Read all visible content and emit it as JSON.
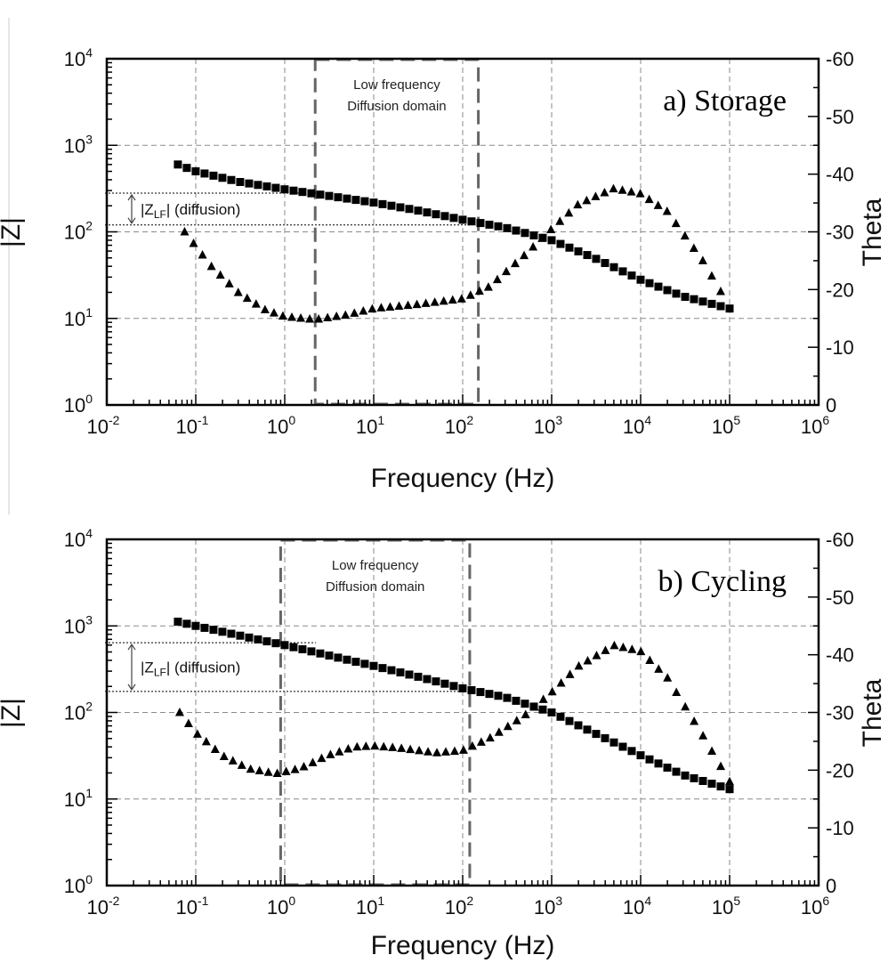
{
  "chart_data": [
    {
      "type": "scatter",
      "title": "a) Storage",
      "xlabel": "Frequency (Hz)",
      "ylabel": "|Z|",
      "y2label": "Theta",
      "xscale": "log",
      "yscale": "log",
      "xlim": [
        0.01,
        1000000
      ],
      "ylim": [
        1,
        10000
      ],
      "y2lim": [
        0,
        -60
      ],
      "x_tick_labels": [
        {
          "base": "10",
          "exp": "-2"
        },
        {
          "base": "10",
          "exp": "-1"
        },
        {
          "base": "10",
          "exp": "0"
        },
        {
          "base": "10",
          "exp": "1"
        },
        {
          "base": "10",
          "exp": "2"
        },
        {
          "base": "10",
          "exp": "3"
        },
        {
          "base": "10",
          "exp": "4"
        },
        {
          "base": "10",
          "exp": "5"
        },
        {
          "base": "10",
          "exp": "6"
        }
      ],
      "y_tick_labels": [
        {
          "base": "10",
          "exp": "0"
        },
        {
          "base": "10",
          "exp": "1"
        },
        {
          "base": "10",
          "exp": "2"
        },
        {
          "base": "10",
          "exp": "3"
        },
        {
          "base": "10",
          "exp": "4"
        }
      ],
      "y2_tick_labels": [
        "0",
        "-10",
        "-20",
        "-30",
        "-40",
        "-50",
        "-60"
      ],
      "grid": true,
      "annotations": {
        "box_line1": "Low frequency",
        "box_line2": "Diffusion domain",
        "box_x_range": [
          2.2,
          150
        ],
        "zlf_label_main": "|Z",
        "zlf_label_sub": "LF",
        "zlf_label_rest": "| (diffusion)",
        "zlf_upper": 280,
        "zlf_lower": 120
      },
      "series": [
        {
          "marker": "square",
          "axis": "left",
          "description": "impedance magnitude",
          "points": [
            [
              0.063,
              600
            ],
            [
              0.1,
              500
            ],
            [
              0.3,
              380
            ],
            [
              1,
              310
            ],
            [
              3,
              262
            ],
            [
              10,
              218
            ],
            [
              30,
              178
            ],
            [
              100,
              138
            ],
            [
              300,
              112
            ],
            [
              1000,
              80
            ],
            [
              3000,
              50
            ],
            [
              10000,
              28
            ],
            [
              30000,
              18
            ],
            [
              100000,
              13
            ]
          ]
        },
        {
          "marker": "triangle",
          "axis": "right",
          "description": "phase angle",
          "points": [
            [
              0.075,
              -30
            ],
            [
              0.15,
              -24
            ],
            [
              0.3,
              -19.5
            ],
            [
              0.6,
              -16.5
            ],
            [
              1,
              -15.3
            ],
            [
              2.2,
              -14.8
            ],
            [
              5,
              -15.6
            ],
            [
              10,
              -16.7
            ],
            [
              30,
              -17.4
            ],
            [
              100,
              -18.4
            ],
            [
              200,
              -20.5
            ],
            [
              500,
              -26
            ],
            [
              1000,
              -30.5
            ],
            [
              2000,
              -34.8
            ],
            [
              5000,
              -37.5
            ],
            [
              10000,
              -36.6
            ],
            [
              20000,
              -33.5
            ],
            [
              50000,
              -25
            ],
            [
              100000,
              -17
            ]
          ]
        }
      ]
    },
    {
      "type": "scatter",
      "title": "b) Cycling",
      "xlabel": "Frequency (Hz)",
      "ylabel": "|Z|",
      "y2label": "Theta",
      "xscale": "log",
      "yscale": "log",
      "xlim": [
        0.01,
        1000000
      ],
      "ylim": [
        1,
        10000
      ],
      "y2lim": [
        0,
        -60
      ],
      "x_tick_labels": [
        {
          "base": "10",
          "exp": "-2"
        },
        {
          "base": "10",
          "exp": "-1"
        },
        {
          "base": "10",
          "exp": "0"
        },
        {
          "base": "10",
          "exp": "1"
        },
        {
          "base": "10",
          "exp": "2"
        },
        {
          "base": "10",
          "exp": "3"
        },
        {
          "base": "10",
          "exp": "4"
        },
        {
          "base": "10",
          "exp": "5"
        },
        {
          "base": "10",
          "exp": "6"
        }
      ],
      "y_tick_labels": [
        {
          "base": "10",
          "exp": "0"
        },
        {
          "base": "10",
          "exp": "1"
        },
        {
          "base": "10",
          "exp": "2"
        },
        {
          "base": "10",
          "exp": "3"
        },
        {
          "base": "10",
          "exp": "4"
        }
      ],
      "y2_tick_labels": [
        "0",
        "-10",
        "-20",
        "-30",
        "-40",
        "-50",
        "-60"
      ],
      "grid": true,
      "annotations": {
        "box_line1": "Low frequency",
        "box_line2": "Diffusion domain",
        "box_x_range": [
          0.9,
          120
        ],
        "zlf_label_main": "|Z",
        "zlf_label_sub": "LF",
        "zlf_label_rest": "| (diffusion)",
        "zlf_upper": 640,
        "zlf_lower": 175
      },
      "series": [
        {
          "marker": "square",
          "axis": "left",
          "description": "impedance magnitude",
          "points": [
            [
              0.063,
              1120
            ],
            [
              0.1,
              1000
            ],
            [
              0.3,
              780
            ],
            [
              1,
              600
            ],
            [
              3,
              460
            ],
            [
              10,
              345
            ],
            [
              30,
              262
            ],
            [
              100,
              190
            ],
            [
              300,
              150
            ],
            [
              1000,
              100
            ],
            [
              3000,
              58
            ],
            [
              10000,
              32
            ],
            [
              30000,
              19
            ],
            [
              100000,
              13
            ]
          ]
        },
        {
          "marker": "triangle",
          "axis": "right",
          "description": "phase angle",
          "points": [
            [
              0.066,
              -30
            ],
            [
              0.1,
              -26.5
            ],
            [
              0.2,
              -22.5
            ],
            [
              0.4,
              -20.2
            ],
            [
              0.8,
              -19.4
            ],
            [
              1.5,
              -20.3
            ],
            [
              3,
              -22.5
            ],
            [
              6,
              -24
            ],
            [
              10,
              -24.2
            ],
            [
              20,
              -23.8
            ],
            [
              50,
              -23
            ],
            [
              100,
              -23.4
            ],
            [
              200,
              -25.5
            ],
            [
              500,
              -29.5
            ],
            [
              1000,
              -33.5
            ],
            [
              2000,
              -38
            ],
            [
              5000,
              -41.6
            ],
            [
              10000,
              -40.6
            ],
            [
              20000,
              -36
            ],
            [
              50000,
              -26
            ],
            [
              100000,
              -18
            ]
          ]
        }
      ]
    }
  ]
}
